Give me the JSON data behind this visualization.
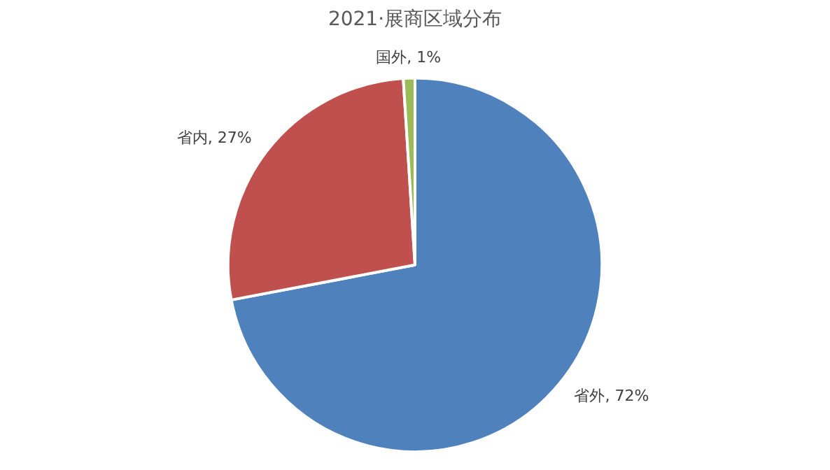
{
  "chart_data": {
    "type": "pie",
    "title": "2021·展商区域分布",
    "categories": [
      "省外",
      "省内",
      "国外"
    ],
    "values": [
      72,
      27,
      1
    ],
    "value_labels": [
      ", 72%",
      ", 27%",
      ", 1%"
    ],
    "colors": [
      "#4f81bd",
      "#c0504d",
      "#9bbb59"
    ],
    "legend": false
  }
}
